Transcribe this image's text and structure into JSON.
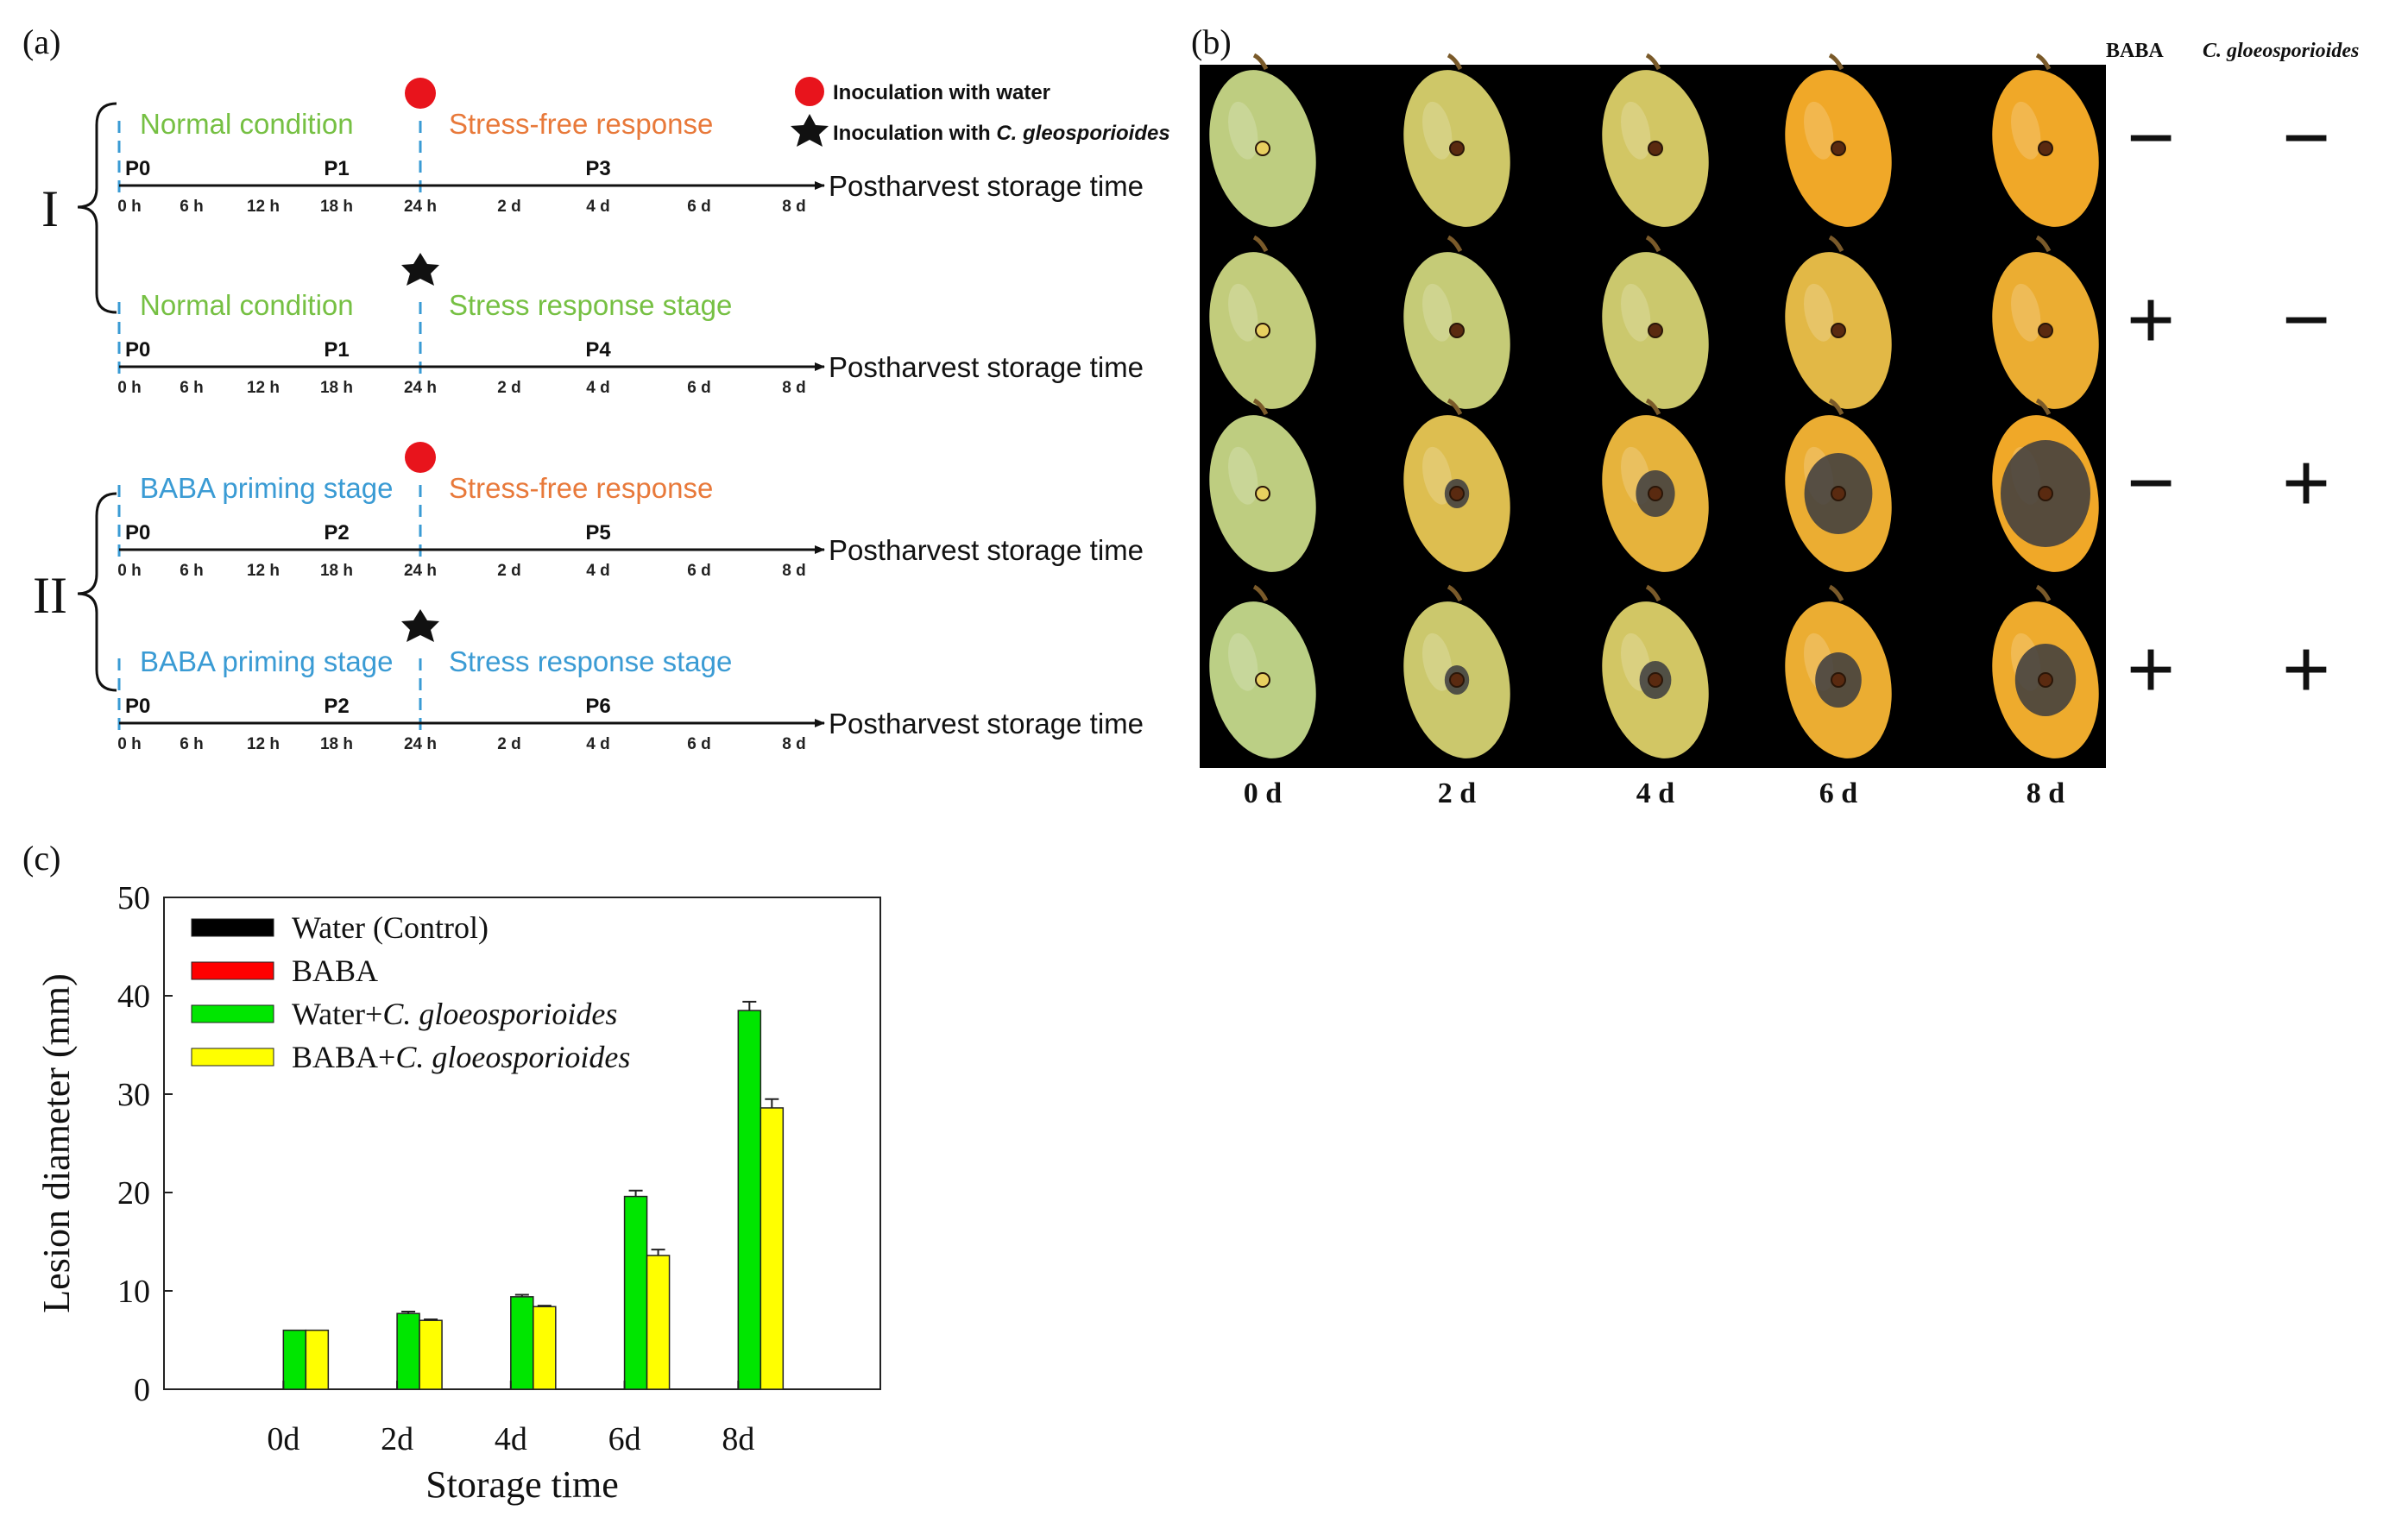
{
  "panel_labels": {
    "a": "(a)",
    "b": "(b)",
    "c": "(c)"
  },
  "panel_a": {
    "legend": {
      "water": "Inoculation with water",
      "fungus_prefix": "Inoculation with ",
      "fungus_species": "C. gleosporioides"
    },
    "axis_title": "Postharvest storage time",
    "ticks": [
      "0 h",
      "6 h",
      "12 h",
      "18 h",
      "24 h",
      "2 d",
      "4 d",
      "6 d",
      "8 d"
    ],
    "groups": [
      "I",
      "II"
    ],
    "timelines": [
      {
        "left_text": "Normal condition",
        "left_color": "green",
        "right_text": "Stress-free response",
        "right_color": "orange",
        "marker": "circle",
        "p0": "P0",
        "p_mid": "P1",
        "p_end": "P3"
      },
      {
        "left_text": "Normal condition",
        "left_color": "green",
        "right_text": "Stress response stage",
        "right_color": "green",
        "marker": "star",
        "p0": "P0",
        "p_mid": "P1",
        "p_end": "P4"
      },
      {
        "left_text": "BABA priming stage",
        "left_color": "blue",
        "right_text": "Stress-free response",
        "right_color": "orange",
        "marker": "circle",
        "p0": "P0",
        "p_mid": "P2",
        "p_end": "P5"
      },
      {
        "left_text": "BABA priming stage",
        "left_color": "blue",
        "right_text": "Stress response stage",
        "right_color": "blue",
        "marker": "star",
        "p0": "P0",
        "p_mid": "P2",
        "p_end": "P6"
      }
    ],
    "colors": {
      "green": "#76c043",
      "orange": "#e8793a",
      "blue": "#3a9bd4",
      "dash": "#3a9bd4",
      "circle": "#e8141c"
    }
  },
  "panel_b": {
    "col_headers": {
      "baba": "BABA",
      "fungus": "C. gloeosporioides"
    },
    "days": [
      "0 d",
      "2 d",
      "4 d",
      "6 d",
      "8 d"
    ],
    "rows": [
      {
        "baba": "−",
        "fungus": "−",
        "lesion": [
          0,
          0,
          0,
          0,
          0
        ],
        "ripeness": [
          0.1,
          0.35,
          0.4,
          1.0,
          1.0
        ]
      },
      {
        "baba": "+",
        "fungus": "−",
        "lesion": [
          0,
          0,
          0,
          0,
          0
        ],
        "ripeness": [
          0.15,
          0.2,
          0.3,
          0.7,
          0.9
        ]
      },
      {
        "baba": "−",
        "fungus": "+",
        "lesion": [
          0,
          0.1,
          0.3,
          0.7,
          1.0
        ],
        "ripeness": [
          0.1,
          0.6,
          0.8,
          0.9,
          1.0
        ]
      },
      {
        "baba": "+",
        "fungus": "+",
        "lesion": [
          0,
          0.1,
          0.2,
          0.4,
          0.6
        ],
        "ripeness": [
          0.05,
          0.3,
          0.4,
          0.9,
          0.95
        ]
      }
    ]
  },
  "chart_data": {
    "type": "bar",
    "categories": [
      "0d",
      "2d",
      "4d",
      "6d",
      "8d"
    ],
    "xlabel": "Storage time",
    "ylabel": "Lesion diameter (mm)",
    "ylim": [
      0,
      50
    ],
    "yticks": [
      0,
      10,
      20,
      30,
      40,
      50
    ],
    "legend_position": "top-left",
    "series": [
      {
        "name": "Water (Control)",
        "name_plain": "Water (Control)",
        "name_italic": "",
        "color": "#000000",
        "values": [
          0,
          0,
          0,
          0,
          0
        ],
        "errors": [
          0,
          0,
          0,
          0,
          0
        ]
      },
      {
        "name": "BABA",
        "name_plain": "BABA",
        "name_italic": "",
        "color": "#ff0000",
        "values": [
          0,
          0,
          0,
          0,
          0
        ],
        "errors": [
          0,
          0,
          0,
          0,
          0
        ]
      },
      {
        "name": "Water+C. gloeosporioides",
        "name_plain": "Water+",
        "name_italic": "C. gloeosporioides",
        "color": "#00e600",
        "values": [
          6.0,
          7.7,
          9.4,
          19.6,
          38.5
        ],
        "errors": [
          0.0,
          0.2,
          0.2,
          0.6,
          0.9
        ]
      },
      {
        "name": "BABA+C. gloeosporioides",
        "name_plain": "BABA+",
        "name_italic": "C. gloeosporioides",
        "color": "#ffff00",
        "values": [
          6.0,
          7.0,
          8.4,
          13.6,
          28.6
        ],
        "errors": [
          0.0,
          0.1,
          0.1,
          0.6,
          0.9
        ]
      }
    ]
  }
}
